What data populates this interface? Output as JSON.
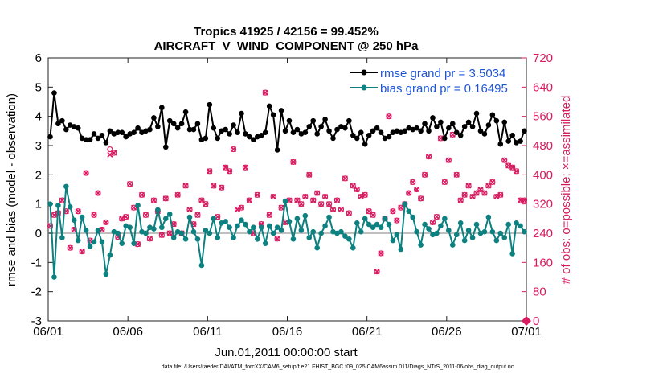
{
  "chart_data": {
    "type": "line",
    "title": "Tropics 41925 / 42156 = 99.452%",
    "subtitle": "AIRCRAFT_V_WIND_COMPONENT @ 250 hPa",
    "xlabel": "Jun.01,2011 00:00:00 start",
    "ylabel": "rmse and bias (model - observation)",
    "y2label": "# of obs: o=possible; ×=assimilated",
    "footnote": "data file: /Users/raeder/DAI/ATM_forcXX/CAM6_setup/f.e21.FHIST_BGC.f09_025.CAM6assim.011/Diags_NTrS_2011-06/obs_diag_output.nc",
    "xlim": [
      0,
      30
    ],
    "ylim": [
      -3,
      6
    ],
    "y2lim": [
      0,
      720
    ],
    "x_ticks": [
      0,
      5,
      10,
      15,
      20,
      25,
      30
    ],
    "x_tick_labels": [
      "06/01",
      "06/06",
      "06/11",
      "06/16",
      "06/21",
      "06/26",
      "07/01"
    ],
    "y_ticks": [
      -3,
      -2,
      -1,
      0,
      1,
      2,
      3,
      4,
      5,
      6
    ],
    "y_tick_labels": [
      "-3",
      "-2",
      "-1",
      "0",
      "1",
      "2",
      "3",
      "4",
      "5",
      "6"
    ],
    "y2_ticks": [
      0,
      80,
      160,
      240,
      320,
      400,
      480,
      560,
      640,
      720
    ],
    "y2_tick_labels": [
      "0",
      "80",
      "160",
      "240",
      "320",
      "400",
      "480",
      "560",
      "640",
      "720"
    ],
    "grid": false,
    "legend_position": "top-right",
    "colors": {
      "rmse": "#000000",
      "bias": "#0d8080",
      "obs": "#d81b60",
      "zero": "#bfbfbf",
      "legend_text": "#1f56d6"
    },
    "series": [
      {
        "name": "rmse grand pr = 3.5034",
        "axis": "left",
        "x": [
          0.125,
          0.375,
          0.625,
          0.875,
          1.125,
          1.375,
          1.625,
          1.875,
          2.125,
          2.375,
          2.625,
          2.875,
          3.125,
          3.375,
          3.625,
          3.875,
          4.125,
          4.375,
          4.625,
          4.875,
          5.125,
          5.375,
          5.625,
          5.875,
          6.125,
          6.375,
          6.625,
          6.875,
          7.125,
          7.375,
          7.625,
          7.875,
          8.125,
          8.375,
          8.625,
          8.875,
          9.125,
          9.375,
          9.625,
          9.875,
          10.125,
          10.375,
          10.625,
          10.875,
          11.125,
          11.375,
          11.625,
          11.875,
          12.125,
          12.375,
          12.625,
          12.875,
          13.125,
          13.375,
          13.625,
          13.875,
          14.125,
          14.375,
          14.625,
          14.875,
          15.125,
          15.375,
          15.625,
          15.875,
          16.125,
          16.375,
          16.625,
          16.875,
          17.125,
          17.375,
          17.625,
          17.875,
          18.125,
          18.375,
          18.625,
          18.875,
          19.125,
          19.375,
          19.625,
          19.875,
          20.125,
          20.375,
          20.625,
          20.875,
          21.125,
          21.375,
          21.625,
          21.875,
          22.125,
          22.375,
          22.625,
          22.875,
          23.125,
          23.375,
          23.625,
          23.875,
          24.125,
          24.375,
          24.625,
          24.875,
          25.125,
          25.375,
          25.625,
          25.875,
          26.125,
          26.375,
          26.625,
          26.875,
          27.125,
          27.375,
          27.625,
          27.875,
          28.125,
          28.375,
          28.625,
          28.875,
          29.125,
          29.375,
          29.625,
          29.875
        ],
        "values": [
          3.3,
          4.8,
          3.75,
          3.85,
          3.55,
          3.7,
          3.65,
          3.6,
          3.25,
          3.2,
          3.2,
          3.4,
          3.25,
          3.35,
          3.1,
          3.5,
          3.4,
          3.45,
          3.45,
          3.3,
          3.4,
          3.45,
          3.6,
          3.45,
          3.5,
          3.55,
          3.95,
          3.65,
          4.3,
          2.95,
          3.85,
          3.75,
          3.6,
          3.75,
          4.15,
          3.55,
          3.55,
          3.75,
          3.2,
          3.25,
          4.4,
          3.6,
          3.25,
          3.5,
          3.55,
          3.4,
          3.7,
          3.45,
          4.1,
          3.4,
          3.3,
          3.2,
          3.3,
          3.35,
          3.45,
          4.35,
          4.05,
          2.85,
          4.2,
          3.5,
          3.85,
          3.45,
          3.55,
          3.4,
          3.45,
          3.65,
          3.85,
          3.4,
          3.65,
          3.9,
          3.5,
          3.25,
          3.55,
          3.65,
          3.6,
          3.85,
          3.35,
          3.25,
          3.45,
          3.05,
          3.35,
          3.5,
          3.6,
          3.45,
          3.25,
          3.3,
          3.45,
          3.5,
          3.45,
          3.5,
          3.6,
          3.55,
          3.6,
          3.5,
          3.75,
          3.5,
          3.95,
          3.65,
          3.8,
          3.25,
          3.6,
          3.75,
          3.45,
          3.35,
          3.65,
          3.8,
          3.65,
          4.1,
          3.5,
          3.4,
          3.7,
          4.05,
          3.85,
          3.05,
          3.8,
          3.15,
          3.35,
          3.1,
          3.15,
          3.5
        ]
      },
      {
        "name": "bias grand pr = 0.16495",
        "axis": "left",
        "x": [
          0.125,
          0.375,
          0.625,
          0.875,
          1.125,
          1.375,
          1.625,
          1.875,
          2.125,
          2.375,
          2.625,
          2.875,
          3.125,
          3.375,
          3.625,
          3.875,
          4.125,
          4.375,
          4.625,
          4.875,
          5.125,
          5.375,
          5.625,
          5.875,
          6.125,
          6.375,
          6.625,
          6.875,
          7.125,
          7.375,
          7.625,
          7.875,
          8.125,
          8.375,
          8.625,
          8.875,
          9.125,
          9.375,
          9.625,
          9.875,
          10.125,
          10.375,
          10.625,
          10.875,
          11.125,
          11.375,
          11.625,
          11.875,
          12.125,
          12.375,
          12.625,
          12.875,
          13.125,
          13.375,
          13.625,
          13.875,
          14.125,
          14.375,
          14.625,
          14.875,
          15.125,
          15.375,
          15.625,
          15.875,
          16.125,
          16.375,
          16.625,
          16.875,
          17.125,
          17.375,
          17.625,
          17.875,
          18.125,
          18.375,
          18.625,
          18.875,
          19.125,
          19.375,
          19.625,
          19.875,
          20.125,
          20.375,
          20.625,
          20.875,
          21.125,
          21.375,
          21.625,
          21.875,
          22.125,
          22.375,
          22.625,
          22.875,
          23.125,
          23.375,
          23.625,
          23.875,
          24.125,
          24.375,
          24.625,
          24.875,
          25.125,
          25.375,
          25.625,
          25.875,
          26.125,
          26.375,
          26.625,
          26.875,
          27.125,
          27.375,
          27.625,
          27.875,
          28.125,
          28.375,
          28.625,
          28.875,
          29.125,
          29.375,
          29.625,
          29.875
        ],
        "values": [
          1.0,
          -1.5,
          0.95,
          -0.15,
          1.6,
          0.9,
          0.45,
          -0.25,
          0.55,
          0.1,
          -0.45,
          -0.3,
          0.1,
          -0.3,
          -1.4,
          -0.75,
          0.05,
          0.0,
          -0.35,
          0.25,
          0.2,
          -0.35,
          0.95,
          0.05,
          0.0,
          0.2,
          0.15,
          0.8,
          0.2,
          0.5,
          0.65,
          -0.15,
          0.05,
          0.0,
          -0.2,
          0.55,
          0.05,
          -0.2,
          -1.1,
          0.1,
          0.0,
          0.5,
          -0.15,
          0.35,
          0.4,
          0.2,
          -0.15,
          0.25,
          0.45,
          0.3,
          0.05,
          0.2,
          -0.2,
          0.2,
          -0.35,
          0.25,
          0.0,
          0.2,
          0.1,
          1.1,
          0.4,
          -0.2,
          0.5,
          0.1,
          0.6,
          -0.15,
          0.05,
          -0.5,
          0.0,
          0.25,
          0.55,
          0.05,
          0.0,
          0.05,
          -0.1,
          -0.2,
          -0.5,
          0.35,
          0.05,
          0.5,
          0.3,
          0.2,
          0.3,
          0.2,
          0.5,
          0.3,
          -0.25,
          -0.05,
          -0.55,
          1.0,
          0.75,
          0.55,
          0.05,
          -0.4,
          0.3,
          0.15,
          -0.05,
          0.0,
          0.25,
          0.5,
          0.1,
          -0.4,
          -0.05,
          0.35,
          -0.25,
          0.1,
          -0.15,
          0.3,
          0.0,
          0.05,
          0.55,
          0.05,
          -0.25,
          0.0,
          -0.15,
          0.3,
          -0.7,
          0.35,
          0.25,
          0.05
        ]
      },
      {
        "name": "# of obs possible",
        "axis": "right",
        "marker": "circle",
        "x": [
          0.125,
          0.375,
          0.625,
          0.875,
          1.125,
          1.375,
          1.625,
          1.875,
          2.125,
          2.375,
          2.625,
          2.875,
          3.125,
          3.375,
          3.625,
          3.875,
          4.125,
          4.375,
          4.625,
          4.875,
          5.125,
          5.375,
          5.625,
          5.875,
          6.125,
          6.375,
          6.625,
          6.875,
          7.125,
          7.375,
          7.625,
          7.875,
          8.125,
          8.375,
          8.625,
          8.875,
          9.125,
          9.375,
          9.625,
          9.875,
          10.125,
          10.375,
          10.625,
          10.875,
          11.125,
          11.375,
          11.625,
          11.875,
          12.125,
          12.375,
          12.625,
          12.875,
          13.125,
          13.375,
          13.625,
          13.875,
          14.125,
          14.375,
          14.625,
          14.875,
          15.125,
          15.375,
          15.625,
          15.875,
          16.125,
          16.375,
          16.625,
          16.875,
          17.125,
          17.375,
          17.625,
          17.875,
          18.125,
          18.375,
          18.625,
          18.875,
          19.125,
          19.375,
          19.625,
          19.875,
          20.125,
          20.375,
          20.625,
          20.875,
          21.125,
          21.375,
          21.625,
          21.875,
          22.125,
          22.375,
          22.625,
          22.875,
          23.125,
          23.375,
          23.625,
          23.875,
          24.125,
          24.375,
          24.625,
          24.875,
          25.125,
          25.375,
          25.625,
          25.875,
          26.125,
          26.375,
          26.625,
          26.875,
          27.125,
          27.375,
          27.625,
          27.875,
          28.125,
          28.375,
          28.625,
          28.875,
          29.125,
          29.375,
          29.625,
          29.875
        ],
        "values": [
          260,
          290,
          295,
          330,
          300,
          200,
          250,
          300,
          190,
          405,
          220,
          290,
          350,
          250,
          270,
          470,
          460,
          230,
          280,
          285,
          375,
          310,
          210,
          345,
          290,
          225,
          330,
          300,
          235,
          335,
          240,
          265,
          345,
          240,
          370,
          305,
          265,
          290,
          330,
          320,
          410,
          370,
          285,
          365,
          420,
          410,
          470,
          305,
          310,
          420,
          330,
          240,
          345,
          265,
          625,
          290,
          340,
          225,
          310,
          270,
          330,
          435,
          330,
          320,
          340,
          400,
          330,
          350,
          320,
          340,
          320,
          305,
          330,
          305,
          390,
          295,
          370,
          360,
          340,
          345,
          300,
          290,
          135,
          185,
          280,
          560,
          300,
          275,
          310,
          320,
          350,
          380,
          360,
          335,
          400,
          450,
          270,
          285,
          500,
          380,
          440,
          510,
          400,
          330,
          345,
          370,
          340,
          350,
          360,
          350,
          370,
          380,
          340,
          345,
          440,
          425,
          420,
          410,
          330,
          330
        ]
      },
      {
        "name": "# of obs assimilated",
        "axis": "right",
        "marker": "x",
        "x": [
          0.125,
          0.375,
          0.625,
          0.875,
          1.125,
          1.375,
          1.625,
          1.875,
          2.125,
          2.375,
          2.625,
          2.875,
          3.125,
          3.375,
          3.625,
          3.875,
          4.125,
          4.375,
          4.625,
          4.875,
          5.125,
          5.375,
          5.625,
          5.875,
          6.125,
          6.375,
          6.625,
          6.875,
          7.125,
          7.375,
          7.625,
          7.875,
          8.125,
          8.375,
          8.625,
          8.875,
          9.125,
          9.375,
          9.625,
          9.875,
          10.125,
          10.375,
          10.625,
          10.875,
          11.125,
          11.375,
          11.625,
          11.875,
          12.125,
          12.375,
          12.625,
          12.875,
          13.125,
          13.375,
          13.625,
          13.875,
          14.125,
          14.375,
          14.625,
          14.875,
          15.125,
          15.375,
          15.625,
          15.875,
          16.125,
          16.375,
          16.625,
          16.875,
          17.125,
          17.375,
          17.625,
          17.875,
          18.125,
          18.375,
          18.625,
          18.875,
          19.125,
          19.375,
          19.625,
          19.875,
          20.125,
          20.375,
          20.625,
          20.875,
          21.125,
          21.375,
          21.625,
          21.875,
          22.125,
          22.375,
          22.625,
          22.875,
          23.125,
          23.375,
          23.625,
          23.875,
          24.125,
          24.375,
          24.625,
          24.875,
          25.125,
          25.375,
          25.625,
          25.875,
          26.125,
          26.375,
          26.625,
          26.875,
          27.125,
          27.375,
          27.625,
          27.875,
          28.125,
          28.375,
          28.625,
          28.875,
          29.125,
          29.375,
          29.625,
          29.875
        ],
        "values": [
          260,
          290,
          295,
          330,
          300,
          200,
          250,
          300,
          190,
          405,
          220,
          290,
          350,
          250,
          270,
          455,
          460,
          230,
          280,
          285,
          375,
          310,
          210,
          345,
          290,
          225,
          330,
          300,
          235,
          335,
          240,
          265,
          345,
          240,
          370,
          305,
          265,
          290,
          330,
          320,
          410,
          370,
          285,
          365,
          420,
          410,
          470,
          305,
          310,
          420,
          330,
          240,
          345,
          265,
          625,
          290,
          340,
          225,
          310,
          270,
          330,
          435,
          330,
          320,
          340,
          400,
          330,
          350,
          320,
          340,
          320,
          305,
          330,
          305,
          390,
          295,
          370,
          360,
          340,
          345,
          300,
          290,
          135,
          185,
          280,
          560,
          300,
          275,
          310,
          320,
          350,
          380,
          360,
          335,
          400,
          450,
          270,
          285,
          500,
          380,
          440,
          510,
          400,
          330,
          345,
          370,
          340,
          350,
          360,
          350,
          370,
          380,
          340,
          345,
          440,
          425,
          420,
          410,
          330,
          330
        ]
      }
    ]
  }
}
